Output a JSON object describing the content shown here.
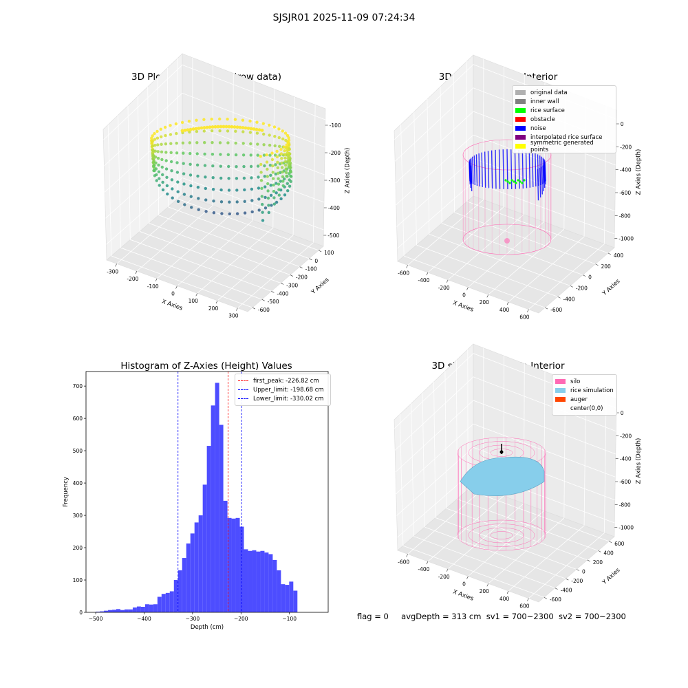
{
  "suptitle": "SJSJR01 2025-11-09 07:24:34",
  "footer": {
    "flag": "flag = 0",
    "avgDepth": "avgDepth = 313 cm",
    "sv1": "sv1 = 700~2300",
    "sv2": "sv2 = 700~2300"
  },
  "colors": {
    "histogram": "#4d4dff",
    "first_peak_line": "#ff0000",
    "limit_line": "#0000ff",
    "silo": "#ff69b4",
    "rice": "#87ceeb"
  },
  "chart_data": [
    {
      "type": "scatter",
      "subtype": "3d",
      "title": "3D Plot of Silo Interior(row data)",
      "xlabel": "X Axies",
      "ylabel": "Y Axies",
      "zlabel": "Z Axies (Depth)",
      "x_ticks": [
        "-300",
        "-200",
        "-100",
        "0",
        "100",
        "200",
        "300"
      ],
      "y_ticks": [
        "100",
        "0",
        "-100",
        "-200",
        "-300",
        "-400",
        "-500",
        "-600"
      ],
      "z_ticks": [
        "-100",
        "-200",
        "-300",
        "-400",
        "-500"
      ],
      "colormap": "viridis",
      "grid": true
    },
    {
      "type": "scatter",
      "subtype": "3d",
      "title": "3D classify of Silo Interior",
      "xlabel": "X Axies",
      "ylabel": "Y Axies",
      "zlabel": "Z Axies (Depth)",
      "x_ticks": [
        "-600",
        "-400",
        "-200",
        "0",
        "200",
        "400",
        "600"
      ],
      "y_ticks": [
        "400",
        "200",
        "0",
        "-200",
        "-400",
        "-600"
      ],
      "z_ticks": [
        "0",
        "-200",
        "-400",
        "-600",
        "-800",
        "-1000"
      ],
      "legend": [
        {
          "label": "original data",
          "color": "#b0b0b0"
        },
        {
          "label": "inner wall",
          "color": "#808080"
        },
        {
          "label": "rice surface",
          "color": "#00ff00"
        },
        {
          "label": "obstacle",
          "color": "#ff0000"
        },
        {
          "label": "noise",
          "color": "#0000ff"
        },
        {
          "label": "interpolated rice surface",
          "color": "#800080"
        },
        {
          "label": "symmetric generated points",
          "color": "#ffff00"
        }
      ],
      "legend_position": "top-right",
      "grid": true
    },
    {
      "type": "bar",
      "subtype": "histogram",
      "title": "Histogram of Z-Axies (Height) Values",
      "xlabel": "Depth (cm)",
      "ylabel": "Frequency",
      "xlim": [
        -520,
        -20
      ],
      "ylim": [
        0,
        745
      ],
      "x_ticks": [
        -500,
        -400,
        -300,
        -200,
        -100
      ],
      "y_ticks": [
        0,
        100,
        200,
        300,
        400,
        500,
        600,
        700
      ],
      "bin_start": -500,
      "bin_width": 8.5,
      "values": [
        2,
        3,
        5,
        7,
        8,
        10,
        7,
        9,
        9,
        15,
        18,
        17,
        25,
        24,
        25,
        48,
        57,
        60,
        65,
        100,
        130,
        168,
        213,
        244,
        278,
        300,
        395,
        515,
        640,
        710,
        580,
        345,
        292,
        290,
        292,
        265,
        195,
        190,
        192,
        188,
        190,
        185,
        180,
        162,
        130,
        87,
        85,
        95,
        67
      ],
      "lines": [
        {
          "label": "first_peak: -226.82 cm",
          "x": -226.82,
          "color": "#ff0000"
        },
        {
          "label": "Upper_limit: -198.68 cm",
          "x": -198.68,
          "color": "#0000ff"
        },
        {
          "label": "Lower_limit: -330.02 cm",
          "x": -330.02,
          "color": "#0000ff"
        }
      ],
      "legend_position": "top-right"
    },
    {
      "type": "scatter",
      "subtype": "3d-surface",
      "title": "3D simulation of Silo Interior",
      "xlabel": "X Axies",
      "ylabel": "Y Axies",
      "zlabel": "Z Axies (Depth)",
      "x_ticks": [
        "-600",
        "-400",
        "-200",
        "0",
        "200",
        "400",
        "600"
      ],
      "y_ticks": [
        "600",
        "400",
        "200",
        "0",
        "-200",
        "-400",
        "-600"
      ],
      "z_ticks": [
        "0",
        "-200",
        "-400",
        "-600",
        "-800",
        "-1000"
      ],
      "legend": [
        {
          "label": "silo",
          "color": "#ff69b4"
        },
        {
          "label": "rice simulation",
          "color": "#87ceeb"
        },
        {
          "label": "auger",
          "color": "#ff4500"
        },
        {
          "label": "center(0,0)",
          "color": ""
        }
      ],
      "legend_position": "top-right",
      "grid": true
    }
  ]
}
